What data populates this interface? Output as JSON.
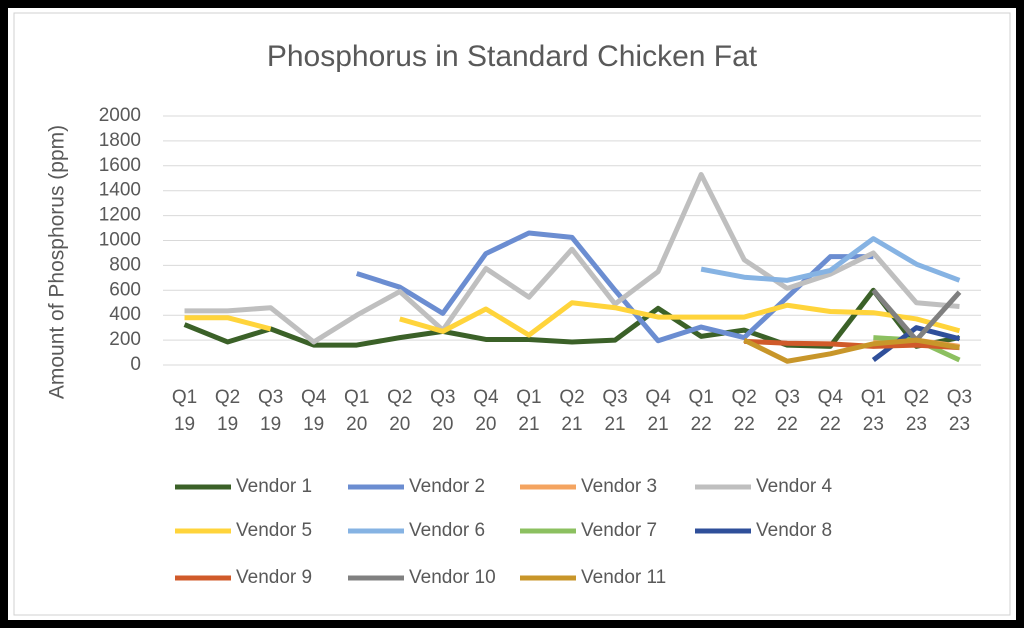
{
  "chart_data": {
    "type": "line",
    "title": "Phosphorus in Standard Chicken Fat",
    "y_label": "Amount of Phosphorus (ppm)",
    "categories": [
      "Q1 19",
      "Q2 19",
      "Q3 19",
      "Q4 19",
      "Q1 20",
      "Q2 20",
      "Q3 20",
      "Q4 20",
      "Q1 21",
      "Q2 21",
      "Q3 21",
      "Q4 21",
      "Q1 22",
      "Q2 22",
      "Q3 22",
      "Q4 22",
      "Q1 23",
      "Q2 23",
      "Q3 23"
    ],
    "ylim": [
      0,
      2000
    ],
    "yticks": [
      0,
      200,
      400,
      600,
      800,
      1000,
      1200,
      1400,
      1600,
      1800,
      2000
    ],
    "grid": true,
    "legend": "bottom",
    "series": [
      {
        "name": "Vendor 1",
        "color": "#3b6128",
        "values": [
          325,
          185,
          290,
          160,
          160,
          220,
          270,
          205,
          205,
          185,
          200,
          455,
          230,
          280,
          160,
          150,
          600,
          150,
          220
        ]
      },
      {
        "name": "Vendor 2",
        "color": "#6b8dd1",
        "values": [
          null,
          null,
          null,
          null,
          735,
          625,
          415,
          895,
          1060,
          1025,
          600,
          195,
          305,
          220,
          545,
          870,
          870,
          null,
          null
        ]
      },
      {
        "name": "Vendor 3",
        "color": "#f4a460",
        "values": [
          null,
          null,
          null,
          null,
          null,
          null,
          null,
          null,
          null,
          null,
          null,
          null,
          null,
          null,
          null,
          null,
          180,
          200,
          150
        ]
      },
      {
        "name": "Vendor 4",
        "color": "#bfbfbf",
        "values": [
          435,
          435,
          460,
          185,
          400,
          590,
          280,
          775,
          545,
          930,
          490,
          750,
          1530,
          845,
          615,
          730,
          900,
          500,
          470
        ]
      },
      {
        "name": "Vendor 5",
        "color": "#ffd43b",
        "values": [
          380,
          380,
          290,
          null,
          null,
          370,
          270,
          450,
          240,
          500,
          460,
          385,
          385,
          385,
          480,
          430,
          420,
          370,
          275
        ]
      },
      {
        "name": "Vendor 6",
        "color": "#86b3e3",
        "values": [
          null,
          null,
          null,
          null,
          null,
          null,
          null,
          null,
          null,
          null,
          null,
          null,
          770,
          705,
          680,
          760,
          1015,
          810,
          680
        ]
      },
      {
        "name": "Vendor 7",
        "color": "#8cc060",
        "values": [
          null,
          null,
          null,
          null,
          null,
          null,
          null,
          null,
          null,
          null,
          null,
          null,
          null,
          null,
          null,
          null,
          220,
          200,
          40
        ]
      },
      {
        "name": "Vendor 8",
        "color": "#2f4f9a",
        "values": [
          null,
          null,
          null,
          null,
          null,
          null,
          null,
          null,
          null,
          null,
          null,
          null,
          null,
          null,
          null,
          null,
          40,
          300,
          210
        ]
      },
      {
        "name": "Vendor 9",
        "color": "#d05a2a",
        "values": [
          null,
          null,
          null,
          null,
          null,
          null,
          null,
          null,
          null,
          null,
          null,
          null,
          null,
          190,
          175,
          170,
          150,
          160,
          140
        ]
      },
      {
        "name": "Vendor 10",
        "color": "#808080",
        "values": [
          null,
          null,
          null,
          null,
          null,
          null,
          null,
          null,
          null,
          null,
          null,
          null,
          null,
          null,
          null,
          null,
          600,
          200,
          585
        ]
      },
      {
        "name": "Vendor 11",
        "color": "#c8962a",
        "values": [
          null,
          null,
          null,
          null,
          null,
          null,
          null,
          null,
          null,
          null,
          null,
          null,
          null,
          200,
          30,
          90,
          170,
          200,
          140
        ]
      }
    ]
  }
}
